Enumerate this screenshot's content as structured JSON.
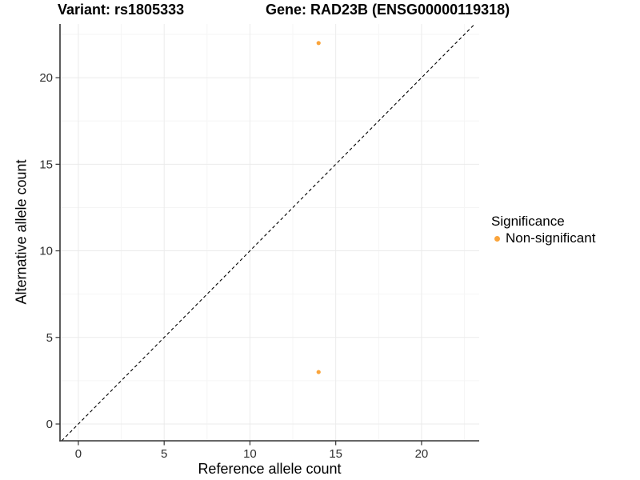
{
  "header": {
    "title_left": "Variant: rs1805333",
    "title_right": "Gene: RAD23B (ENSG00000119318)"
  },
  "chart_data": {
    "type": "scatter",
    "title_left": "Variant: rs1805333",
    "title_right": "Gene: RAD23B (ENSG00000119318)",
    "xlabel": "Reference allele count",
    "ylabel": "Alternative allele count",
    "xlim": [
      -1.07,
      23.36
    ],
    "ylim": [
      -0.97,
      23.1
    ],
    "x_ticks": [
      0,
      5,
      10,
      15,
      20
    ],
    "y_ticks": [
      0,
      5,
      10,
      15,
      20
    ],
    "x_minor_gridlines": [
      2.5,
      7.5,
      12.5,
      17.5,
      22.5
    ],
    "y_minor_gridlines": [
      2.5,
      7.5,
      12.5,
      17.5,
      22.5
    ],
    "grid": true,
    "identity_line": {
      "equation": "y = x",
      "style": "dashed",
      "color": "#000000"
    },
    "series": [
      {
        "name": "Non-significant",
        "color": "#FAA43B",
        "points": [
          {
            "x": 14,
            "y": 22
          },
          {
            "x": 14,
            "y": 3
          }
        ]
      }
    ],
    "legend": {
      "title": "Significance",
      "position": "right",
      "entries": [
        {
          "label": "Non-significant",
          "color": "#FAA43B"
        }
      ]
    },
    "colors": {
      "point": "#FAA43B",
      "axis_line": "#333333",
      "major_grid": "#EBEBEB",
      "minor_grid": "#F5F5F5",
      "tick_text": "#303030"
    }
  }
}
